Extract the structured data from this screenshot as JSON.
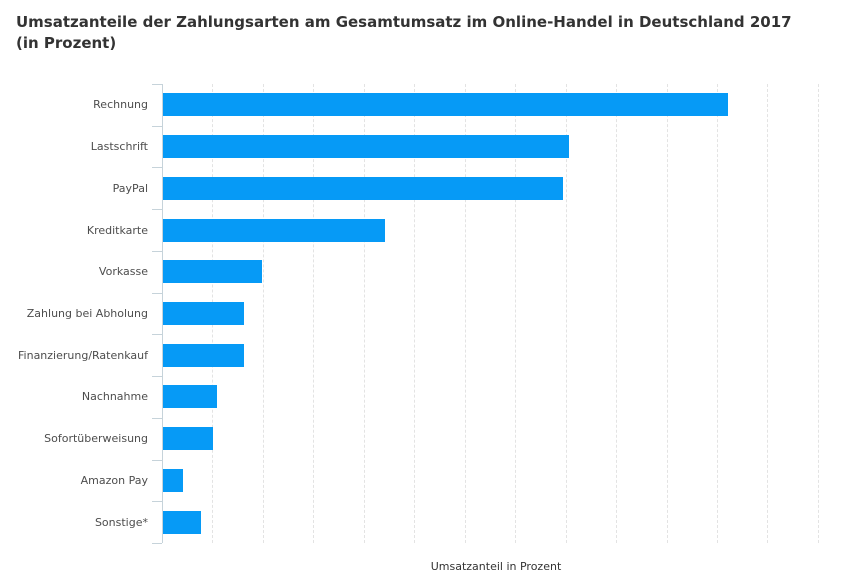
{
  "title": {
    "line1": "Umsatzanteile der Zahlungsarten am Gesamtumsatz im Online-Handel in Deutschland 2017",
    "line2": "(in Prozent)"
  },
  "chart_data": {
    "type": "bar",
    "orientation": "horizontal",
    "title": "Umsatzanteile der Zahlungsarten am Gesamtumsatz im Online-Handel in Deutschland 2017 (in Prozent)",
    "categories": [
      "Rechnung",
      "Lastschrift",
      "PayPal",
      "Kreditkarte",
      "Vorkasse",
      "Zahlung bei Abholung",
      "Finanzierung/Ratenkauf",
      "Nachnahme",
      "Sofortüberweisung",
      "Amazon Pay",
      "Sonstige*"
    ],
    "values": [
      28.0,
      20.1,
      19.8,
      11.0,
      4.9,
      4.0,
      4.0,
      2.7,
      2.5,
      1.0,
      1.9
    ],
    "xlabel": "Umsatzanteil in Prozent",
    "ylabel": "",
    "xlim": [
      0,
      33.1
    ],
    "grid": true,
    "grid_step": 2.5,
    "legend": "none",
    "colors": {
      "bar": "#069af6",
      "axis": "#c6d3da",
      "grid": "#e3e3e3",
      "title_text": "#333333",
      "label_text": "#4d4d4d"
    }
  }
}
